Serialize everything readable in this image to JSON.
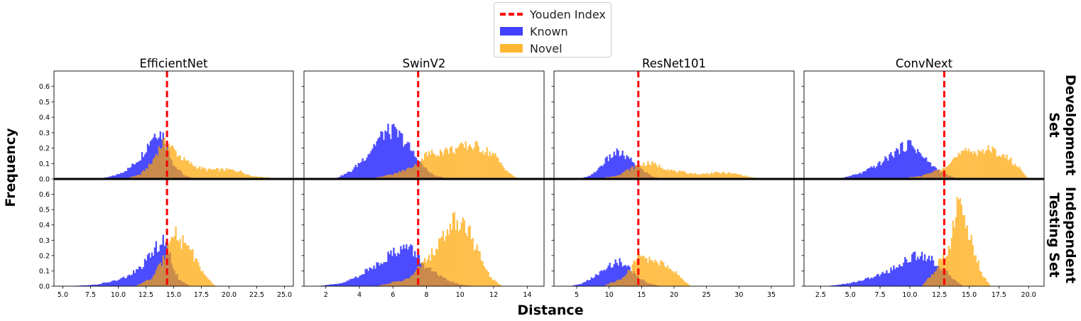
{
  "figure": {
    "xlabel": "Distance",
    "ylabel": "Frequency",
    "row_labels": [
      [
        "Development",
        "Set"
      ],
      [
        "Independent",
        "Testing Set"
      ]
    ],
    "legend": [
      {
        "label": "Youden Index",
        "kind": "dashed-line",
        "color": "#ff0000"
      },
      {
        "label": "Known",
        "kind": "patch",
        "color": "#4040ff"
      },
      {
        "label": "Novel",
        "kind": "patch",
        "color": "#ffb733"
      }
    ]
  },
  "chart_data": [
    {
      "type": "histogram",
      "title": "EfficientNet",
      "row": "Development Set",
      "xlim": [
        4.2,
        25.8
      ],
      "ylim": [
        0,
        0.7
      ],
      "xticks": [
        5.0,
        7.5,
        10.0,
        12.5,
        15.0,
        17.5,
        20.0,
        22.5,
        25.0
      ],
      "xtick_labels": [
        "5.0",
        "7.5",
        "10.0",
        "12.5",
        "15.0",
        "17.5",
        "20.0",
        "22.5",
        "25.0"
      ],
      "yticks": [
        0.0,
        0.1,
        0.2,
        0.3,
        0.4,
        0.5,
        0.6
      ],
      "yticks_shown": true,
      "youden_index": 14.4,
      "series": [
        {
          "name": "Known",
          "color": "#0000ff",
          "x": [
            8.0,
            9.0,
            10.0,
            11.0,
            12.0,
            12.5,
            13.0,
            13.5,
            14.0,
            14.5,
            15.0,
            16.0,
            17.0
          ],
          "y": [
            0.0,
            0.01,
            0.03,
            0.07,
            0.14,
            0.2,
            0.27,
            0.31,
            0.29,
            0.2,
            0.09,
            0.02,
            0.0
          ]
        },
        {
          "name": "Novel",
          "color": "#ffa500",
          "x": [
            10.5,
            12.0,
            13.0,
            13.5,
            14.0,
            14.5,
            15.0,
            15.5,
            16.0,
            17.0,
            18.0,
            19.0,
            20.0,
            21.0,
            22.0,
            23.5,
            25.0
          ],
          "y": [
            0.0,
            0.03,
            0.1,
            0.18,
            0.23,
            0.23,
            0.19,
            0.15,
            0.12,
            0.08,
            0.06,
            0.06,
            0.06,
            0.05,
            0.02,
            0.01,
            0.0
          ]
        }
      ]
    },
    {
      "type": "histogram",
      "title": "SwinV2",
      "row": "Development Set",
      "xlim": [
        0.7,
        15.0
      ],
      "ylim": [
        0,
        0.7
      ],
      "xticks": [
        2,
        4,
        6,
        8,
        10,
        12,
        14
      ],
      "xtick_labels": [
        "2",
        "4",
        "6",
        "8",
        "10",
        "12",
        "14"
      ],
      "yticks": [
        0.0,
        0.1,
        0.2,
        0.3,
        0.4,
        0.5,
        0.6
      ],
      "yticks_shown": false,
      "youden_index": 7.5,
      "series": [
        {
          "name": "Known",
          "color": "#0000ff",
          "x": [
            2.5,
            3.5,
            4.5,
            5.0,
            5.5,
            6.0,
            6.5,
            7.0,
            7.5,
            8.0,
            8.5,
            9.5
          ],
          "y": [
            0.0,
            0.05,
            0.16,
            0.24,
            0.3,
            0.31,
            0.27,
            0.2,
            0.12,
            0.06,
            0.02,
            0.0
          ]
        },
        {
          "name": "Novel",
          "color": "#ffa500",
          "x": [
            4.5,
            6.0,
            7.0,
            7.5,
            8.0,
            9.0,
            10.0,
            10.5,
            11.0,
            12.0,
            12.5,
            13.0,
            13.5
          ],
          "y": [
            0.0,
            0.03,
            0.07,
            0.11,
            0.16,
            0.18,
            0.2,
            0.22,
            0.21,
            0.16,
            0.09,
            0.03,
            0.0
          ]
        }
      ]
    },
    {
      "type": "histogram",
      "title": "ResNet101",
      "row": "Development Set",
      "xlim": [
        1.5,
        38.5
      ],
      "ylim": [
        0,
        0.7
      ],
      "xticks": [
        5,
        10,
        15,
        20,
        25,
        30,
        35
      ],
      "xtick_labels": [
        "5",
        "10",
        "15",
        "20",
        "25",
        "30",
        "35"
      ],
      "yticks": [
        0.0,
        0.1,
        0.2,
        0.3,
        0.4,
        0.5,
        0.6
      ],
      "yticks_shown": false,
      "youden_index": 14.5,
      "series": [
        {
          "name": "Known",
          "color": "#0000ff",
          "x": [
            5.5,
            7.5,
            9.5,
            11.0,
            12.0,
            13.0,
            14.0,
            15.0,
            16.5,
            18.0
          ],
          "y": [
            0.0,
            0.03,
            0.12,
            0.17,
            0.16,
            0.13,
            0.1,
            0.06,
            0.02,
            0.0
          ]
        },
        {
          "name": "Novel",
          "color": "#ffa500",
          "x": [
            8.0,
            11.0,
            13.0,
            14.5,
            15.5,
            16.5,
            18.0,
            20.0,
            22.0,
            24.0,
            26.0,
            28.0,
            30.0,
            32.0,
            34.0
          ],
          "y": [
            0.0,
            0.02,
            0.06,
            0.09,
            0.1,
            0.1,
            0.08,
            0.05,
            0.04,
            0.03,
            0.04,
            0.04,
            0.03,
            0.01,
            0.0
          ]
        }
      ]
    },
    {
      "type": "histogram",
      "title": "ConvNext",
      "row": "Development Set",
      "xlim": [
        1.1,
        21.3
      ],
      "ylim": [
        0,
        0.7
      ],
      "xticks": [
        2.5,
        5.0,
        7.5,
        10.0,
        12.5,
        15.0,
        17.5,
        20.0
      ],
      "xtick_labels": [
        "2.5",
        "5.0",
        "7.5",
        "10.0",
        "12.5",
        "15.0",
        "17.5",
        "20.0"
      ],
      "yticks": [
        0.0,
        0.1,
        0.2,
        0.3,
        0.4,
        0.5,
        0.6
      ],
      "yticks_shown": false,
      "youden_index": 12.9,
      "series": [
        {
          "name": "Known",
          "color": "#0000ff",
          "x": [
            4.0,
            6.0,
            7.5,
            8.5,
            9.5,
            10.0,
            10.5,
            11.0,
            12.0,
            13.0,
            14.0
          ],
          "y": [
            0.0,
            0.04,
            0.1,
            0.16,
            0.21,
            0.23,
            0.2,
            0.15,
            0.08,
            0.03,
            0.0
          ]
        },
        {
          "name": "Novel",
          "color": "#ffa500",
          "x": [
            9.0,
            11.0,
            12.5,
            13.5,
            14.5,
            15.5,
            16.5,
            17.5,
            18.5,
            19.5,
            20.0
          ],
          "y": [
            0.0,
            0.02,
            0.06,
            0.12,
            0.17,
            0.18,
            0.19,
            0.17,
            0.12,
            0.05,
            0.0
          ]
        }
      ]
    },
    {
      "type": "histogram",
      "title": "",
      "row": "Independent Testing Set",
      "xlim": [
        4.2,
        25.8
      ],
      "ylim": [
        0,
        0.7
      ],
      "xticks": [
        5.0,
        7.5,
        10.0,
        12.5,
        15.0,
        17.5,
        20.0,
        22.5,
        25.0
      ],
      "xtick_labels": [
        "5.0",
        "7.5",
        "10.0",
        "12.5",
        "15.0",
        "17.5",
        "20.0",
        "22.5",
        "25.0"
      ],
      "yticks": [
        0.0,
        0.1,
        0.2,
        0.3,
        0.4,
        0.5,
        0.6
      ],
      "yticks_shown": true,
      "youden_index": 14.4,
      "series": [
        {
          "name": "Known",
          "color": "#0000ff",
          "x": [
            5.5,
            8.0,
            10.0,
            11.0,
            12.0,
            12.5,
            13.0,
            13.5,
            14.0,
            14.5,
            15.0,
            15.5,
            16.5
          ],
          "y": [
            0.0,
            0.01,
            0.04,
            0.07,
            0.12,
            0.16,
            0.21,
            0.26,
            0.29,
            0.24,
            0.12,
            0.04,
            0.0
          ]
        },
        {
          "name": "Novel",
          "color": "#ffa500",
          "x": [
            11.5,
            13.0,
            14.0,
            14.5,
            15.0,
            15.5,
            16.0,
            16.5,
            17.0,
            17.5,
            18.0,
            18.8
          ],
          "y": [
            0.0,
            0.05,
            0.16,
            0.3,
            0.39,
            0.28,
            0.3,
            0.25,
            0.17,
            0.11,
            0.05,
            0.0
          ]
        }
      ]
    },
    {
      "type": "histogram",
      "title": "",
      "row": "Independent Testing Set",
      "xlim": [
        0.7,
        15.0
      ],
      "ylim": [
        0,
        0.7
      ],
      "xticks": [
        2,
        4,
        6,
        8,
        10,
        12,
        14
      ],
      "xtick_labels": [
        "2",
        "4",
        "6",
        "8",
        "10",
        "12",
        "14"
      ],
      "yticks": [
        0.0,
        0.1,
        0.2,
        0.3,
        0.4,
        0.5,
        0.6
      ],
      "yticks_shown": false,
      "youden_index": 7.5,
      "series": [
        {
          "name": "Known",
          "color": "#0000ff",
          "x": [
            1.5,
            3.0,
            4.0,
            5.0,
            6.0,
            6.5,
            7.0,
            7.5,
            8.0,
            9.0,
            10.0,
            11.0
          ],
          "y": [
            0.0,
            0.02,
            0.07,
            0.14,
            0.22,
            0.25,
            0.25,
            0.19,
            0.12,
            0.05,
            0.01,
            0.0
          ]
        },
        {
          "name": "Novel",
          "color": "#ffa500",
          "x": [
            5.0,
            7.0,
            7.5,
            8.0,
            8.5,
            9.0,
            9.5,
            10.0,
            10.5,
            11.0,
            11.5,
            12.0,
            12.5
          ],
          "y": [
            0.0,
            0.05,
            0.12,
            0.17,
            0.24,
            0.32,
            0.42,
            0.43,
            0.37,
            0.24,
            0.11,
            0.04,
            0.0
          ]
        }
      ]
    },
    {
      "type": "histogram",
      "title": "",
      "row": "Independent Testing Set",
      "xlim": [
        1.5,
        38.5
      ],
      "ylim": [
        0,
        0.7
      ],
      "xticks": [
        5,
        10,
        15,
        20,
        25,
        30,
        35
      ],
      "xtick_labels": [
        "5",
        "10",
        "15",
        "20",
        "25",
        "30",
        "35"
      ],
      "yticks": [
        0.0,
        0.1,
        0.2,
        0.3,
        0.4,
        0.5,
        0.6
      ],
      "yticks_shown": false,
      "youden_index": 14.5,
      "series": [
        {
          "name": "Known",
          "color": "#0000ff",
          "x": [
            4.0,
            6.0,
            8.0,
            9.5,
            10.5,
            11.5,
            12.5,
            13.5,
            14.5,
            16.0,
            18.0
          ],
          "y": [
            0.0,
            0.02,
            0.07,
            0.11,
            0.15,
            0.16,
            0.14,
            0.1,
            0.06,
            0.02,
            0.0
          ]
        },
        {
          "name": "Novel",
          "color": "#ffa500",
          "x": [
            9.0,
            12.0,
            13.5,
            14.5,
            15.5,
            16.5,
            17.5,
            18.5,
            19.5,
            20.5,
            21.5,
            22.5
          ],
          "y": [
            0.0,
            0.05,
            0.12,
            0.2,
            0.18,
            0.17,
            0.16,
            0.14,
            0.12,
            0.08,
            0.04,
            0.0
          ]
        }
      ]
    },
    {
      "type": "histogram",
      "title": "",
      "row": "Independent Testing Set",
      "xlim": [
        1.1,
        21.3
      ],
      "ylim": [
        0,
        0.7
      ],
      "xticks": [
        2.5,
        5.0,
        7.5,
        10.0,
        12.5,
        15.0,
        17.5,
        20.0
      ],
      "xtick_labels": [
        "2.5",
        "5.0",
        "7.5",
        "10.0",
        "12.5",
        "15.0",
        "17.5",
        "20.0"
      ],
      "yticks": [
        0.0,
        0.1,
        0.2,
        0.3,
        0.4,
        0.5,
        0.6
      ],
      "yticks_shown": false,
      "youden_index": 12.9,
      "series": [
        {
          "name": "Known",
          "color": "#0000ff",
          "x": [
            3.0,
            5.0,
            7.0,
            8.5,
            9.5,
            10.5,
            11.0,
            11.5,
            12.5,
            13.5,
            14.5
          ],
          "y": [
            0.0,
            0.02,
            0.06,
            0.11,
            0.16,
            0.2,
            0.21,
            0.19,
            0.13,
            0.06,
            0.0
          ]
        },
        {
          "name": "Novel",
          "color": "#ffa500",
          "x": [
            11.0,
            12.0,
            12.5,
            13.0,
            13.5,
            14.0,
            14.5,
            15.0,
            15.5,
            16.0,
            16.8
          ],
          "y": [
            0.0,
            0.09,
            0.16,
            0.19,
            0.3,
            0.55,
            0.49,
            0.33,
            0.21,
            0.09,
            0.0
          ]
        }
      ]
    }
  ]
}
